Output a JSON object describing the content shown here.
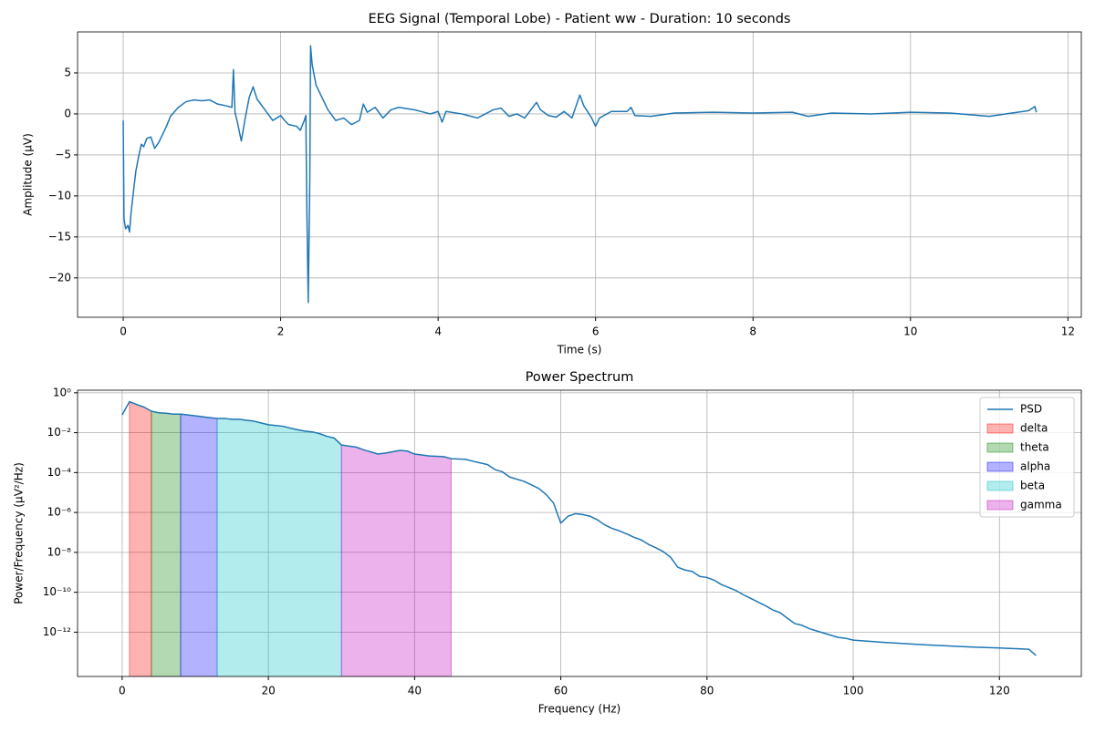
{
  "chart_data": [
    {
      "type": "line",
      "title": "EEG Signal (Temporal Lobe) - Patient ww - Duration: 10 seconds",
      "xlabel": "Time (s)",
      "ylabel": "Amplitude (µV)",
      "grid": true,
      "xlim": [
        -0.58,
        12.17
      ],
      "ylim": [
        -24.8,
        10
      ],
      "xticks": [
        0,
        2,
        4,
        6,
        8,
        10,
        12
      ],
      "yticks": [
        {
          "value": -20,
          "label": "−20"
        },
        {
          "value": -15,
          "label": "−15"
        },
        {
          "value": -10,
          "label": "−10"
        },
        {
          "value": -5,
          "label": "−5"
        },
        0,
        5
      ],
      "series": [
        {
          "name": "EEG",
          "color": "#1f77b4",
          "x": [
            0,
            0.01,
            0.03,
            0.06,
            0.08,
            0.1,
            0.13,
            0.16,
            0.2,
            0.23,
            0.26,
            0.3,
            0.35,
            0.4,
            0.45,
            0.5,
            0.55,
            0.6,
            0.7,
            0.8,
            0.9,
            1.0,
            1.1,
            1.2,
            1.3,
            1.38,
            1.4,
            1.42,
            1.45,
            1.5,
            1.55,
            1.6,
            1.65,
            1.7,
            1.8,
            1.9,
            1.95,
            2.0,
            2.05,
            2.1,
            2.2,
            2.25,
            2.3,
            2.32,
            2.33,
            2.35,
            2.37,
            2.38,
            2.4,
            2.45,
            2.5,
            2.55,
            2.6,
            2.7,
            2.8,
            2.9,
            3.0,
            3.05,
            3.1,
            3.2,
            3.3,
            3.4,
            3.5,
            3.7,
            3.9,
            4.0,
            4.05,
            4.1,
            4.3,
            4.5,
            4.7,
            4.8,
            4.9,
            5.0,
            5.1,
            5.25,
            5.3,
            5.4,
            5.5,
            5.6,
            5.7,
            5.8,
            5.85,
            5.95,
            6.0,
            6.05,
            6.2,
            6.4,
            6.45,
            6.5,
            6.7,
            7.0,
            7.5,
            8.0,
            8.5,
            8.7,
            9.0,
            9.5,
            10,
            10.5,
            11.0,
            11.5,
            11.58,
            11.6
          ],
          "values": [
            -0.8,
            -12.8,
            -14,
            -13.6,
            -14.4,
            -12,
            -9.5,
            -7,
            -5,
            -3.7,
            -4,
            -3,
            -2.8,
            -4.2,
            -3.5,
            -2.5,
            -1.5,
            -0.3,
            0.8,
            1.5,
            1.7,
            1.6,
            1.7,
            1.2,
            1.0,
            0.8,
            5.4,
            0.2,
            -1,
            -3.3,
            -0.5,
            2,
            3.3,
            1.8,
            0.5,
            -0.8,
            -0.5,
            -0.2,
            -0.8,
            -1.3,
            -1.5,
            -2,
            -0.8,
            -0.2,
            -10,
            -23,
            -8,
            8.3,
            6,
            3.5,
            2.5,
            1.5,
            0.5,
            -0.8,
            -0.5,
            -1.3,
            -0.8,
            1.2,
            0.2,
            0.8,
            -0.5,
            0.5,
            0.8,
            0.5,
            0.0,
            0.3,
            -1.0,
            0.3,
            0,
            -0.5,
            0.5,
            0.7,
            -0.3,
            0,
            -0.5,
            1.4,
            0.5,
            -0.2,
            -0.4,
            0.3,
            -0.5,
            2.3,
            1.0,
            -0.5,
            -1.5,
            -0.5,
            0.3,
            0.3,
            0.8,
            -0.2,
            -0.3,
            0.1,
            0.2,
            0.1,
            0.2,
            -0.3,
            0.1,
            0.0,
            0.2,
            0.1,
            -0.3,
            0.4,
            0.9,
            0.2
          ]
        }
      ]
    },
    {
      "type": "line",
      "title": "Power Spectrum",
      "xlabel": "Frequency (Hz)",
      "ylabel": "Power/Frequency (µV²/Hz)",
      "grid": true,
      "log_y": true,
      "legend": "upper right",
      "xlim": [
        -6.1,
        131.2
      ],
      "ylim": [
        6e-15,
        1.35
      ],
      "xticks": [
        0,
        20,
        40,
        60,
        80,
        100,
        120
      ],
      "yticks": [
        {
          "value": 1e-12,
          "label": "10⁻¹²"
        },
        {
          "value": 1e-10,
          "label": "10⁻¹⁰"
        },
        {
          "value": 1e-08,
          "label": "10⁻⁸"
        },
        {
          "value": 1e-06,
          "label": "10⁻⁶"
        },
        {
          "value": 0.0001,
          "label": "10⁻⁴"
        },
        {
          "value": 0.01,
          "label": "10⁻²"
        },
        {
          "value": 1,
          "label": "10⁰"
        }
      ],
      "series": [
        {
          "name": "PSD",
          "color": "#1f77b4",
          "x": [
            0,
            1,
            2,
            3,
            4,
            5,
            6,
            7,
            8,
            9,
            10,
            11,
            12,
            13,
            14,
            15,
            16,
            17,
            18,
            19,
            20,
            22,
            23,
            24,
            25,
            26,
            27,
            28,
            29,
            30,
            32,
            33,
            35,
            36,
            38,
            39,
            40,
            42,
            44,
            45,
            47,
            48,
            50,
            51,
            52,
            53,
            55,
            56,
            57,
            58,
            59,
            60,
            61,
            62,
            63,
            64,
            65,
            66,
            67,
            68,
            69,
            70,
            71,
            72,
            73,
            74,
            75,
            76,
            77,
            78,
            79,
            80,
            81,
            82,
            83,
            84,
            85,
            86,
            87,
            88,
            89,
            90,
            91,
            92,
            93,
            94,
            96,
            98,
            99,
            100,
            104,
            110,
            116,
            120,
            124,
            125
          ],
          "values": [
            0.078,
            0.36,
            0.26,
            0.19,
            0.12,
            0.1,
            0.095,
            0.085,
            0.085,
            0.078,
            0.07,
            0.063,
            0.057,
            0.052,
            0.052,
            0.047,
            0.047,
            0.042,
            0.038,
            0.031,
            0.025,
            0.021,
            0.017,
            0.014,
            0.012,
            0.011,
            0.009,
            0.0066,
            0.0054,
            0.0024,
            0.0019,
            0.0014,
            0.00085,
            0.00095,
            0.0013,
            0.0012,
            0.00085,
            0.00068,
            0.00063,
            0.0005,
            0.00046,
            0.00037,
            0.00025,
            0.00014,
            0.00011,
            6e-05,
            3.6e-05,
            2.4e-05,
            1.6e-05,
            7.9e-06,
            3e-06,
            2.9e-07,
            6.5e-07,
            8.7e-07,
            7.9e-07,
            6.5e-07,
            4.3e-07,
            2.4e-07,
            1.6e-07,
            1.2e-07,
            8.5e-08,
            5.7e-08,
            4.2e-08,
            2.5e-08,
            1.7e-08,
            1.1e-08,
            5.8e-09,
            1.8e-09,
            1.3e-09,
            1.1e-09,
            6.2e-10,
            5.5e-10,
            4e-10,
            2.4e-10,
            1.7e-10,
            1.2e-10,
            7.4e-11,
            4.9e-11,
            3.2e-11,
            2.1e-11,
            1.3e-11,
            9.5e-12,
            5e-12,
            2.7e-12,
            2.2e-12,
            1.5e-12,
            8.9e-13,
            5.4e-13,
            4.9e-13,
            4e-13,
            3.1e-13,
            2.3e-13,
            1.8e-13,
            1.6e-13,
            1.4e-13,
            6.8e-14
          ]
        }
      ],
      "fill_alpha": 0.3,
      "bands": [
        {
          "name": "delta",
          "color": "#ff0000",
          "range": [
            1,
            4
          ]
        },
        {
          "name": "theta",
          "color": "#008000",
          "range": [
            4,
            8
          ]
        },
        {
          "name": "alpha",
          "color": "#0000ff",
          "range": [
            8,
            13
          ]
        },
        {
          "name": "beta",
          "color": "#00bfbf",
          "range": [
            13,
            30
          ]
        },
        {
          "name": "gamma",
          "color": "#bf00bf",
          "range": [
            30,
            45
          ]
        }
      ]
    }
  ]
}
